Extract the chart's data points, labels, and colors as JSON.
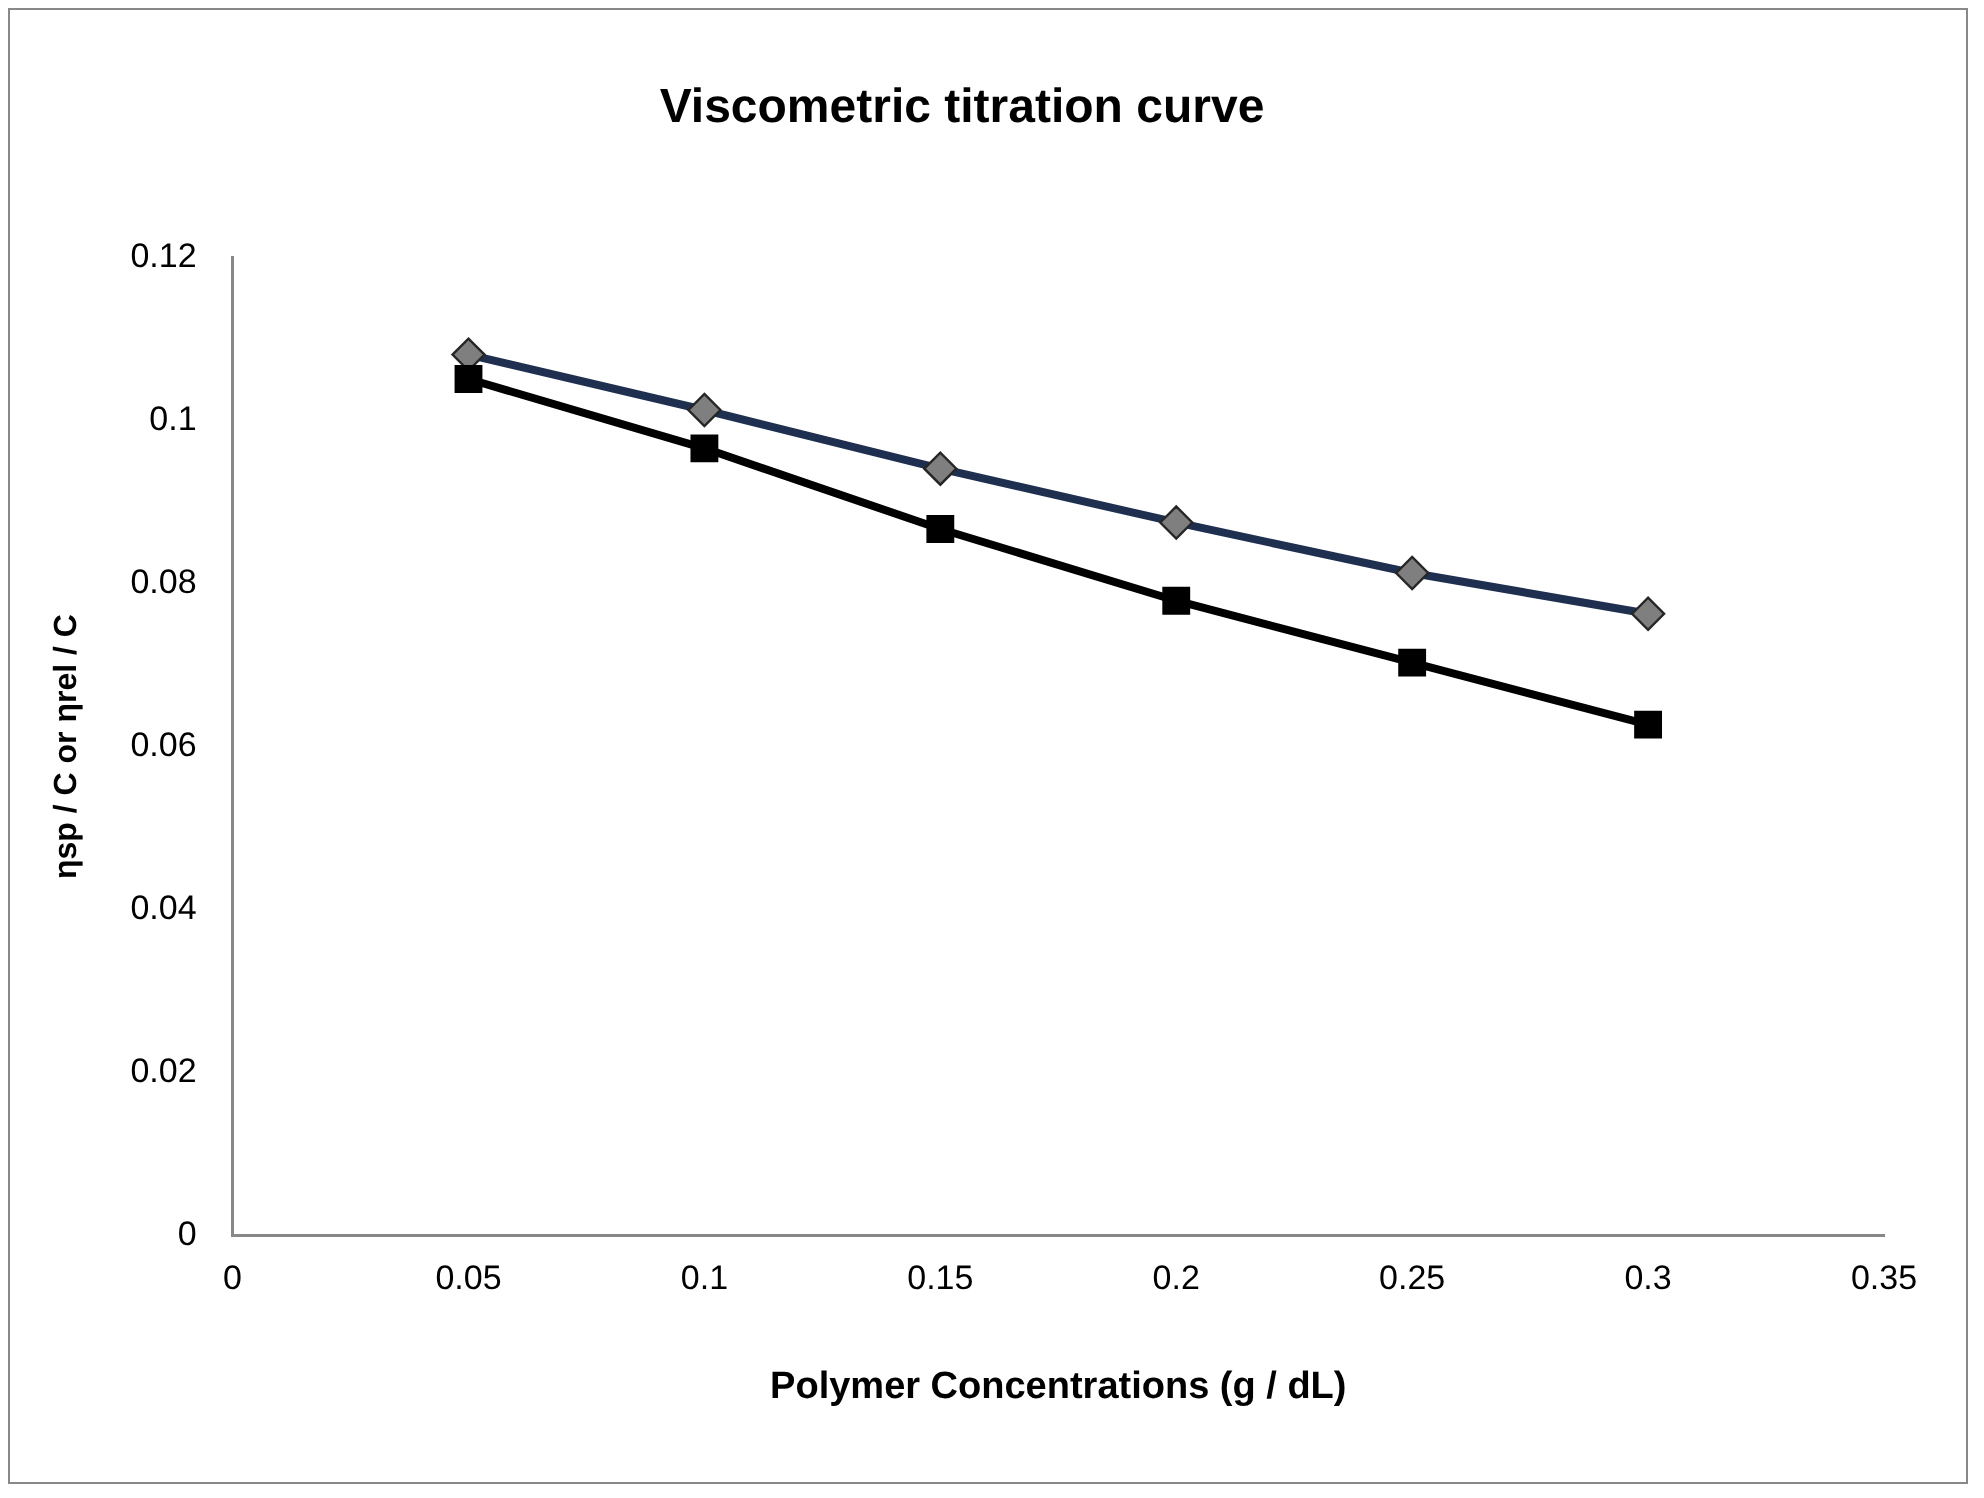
{
  "chart_data": {
    "type": "line",
    "title": "Viscometric titration curve",
    "xlabel": "Polymer Concentrations (g / dL)",
    "ylabel": "ηsp / C or ηrel / C",
    "x": [
      0.05,
      0.1,
      0.15,
      0.2,
      0.25,
      0.3
    ],
    "series": [
      {
        "color": "#1f2f4f",
        "colors": [
          "#7f7f7f",
          "#7f7f7f",
          "#7f7f7f",
          "#7f7f7f",
          "#7f7f7f",
          "#7f7f7f"
        ],
        "marker": "diamond",
        "values": [
          0.1081,
          0.1013,
          0.0941,
          0.0875,
          0.0813,
          0.0763
        ]
      },
      {
        "color": "#000000",
        "marker": "square",
        "values": [
          0.1051,
          0.0966,
          0.0867,
          0.0779,
          0.0703,
          0.0627
        ]
      }
    ],
    "xlim": [
      0,
      0.35
    ],
    "xticks": [
      0,
      0.05,
      0.1,
      0.15,
      0.2,
      0.25,
      0.3,
      0.35
    ],
    "ylim": [
      0,
      0.12
    ],
    "yticks": [
      0,
      0.02,
      0.04,
      0.06,
      0.08,
      0.1,
      0.12
    ],
    "grid": false,
    "legend": false,
    "line_style": "solid"
  }
}
